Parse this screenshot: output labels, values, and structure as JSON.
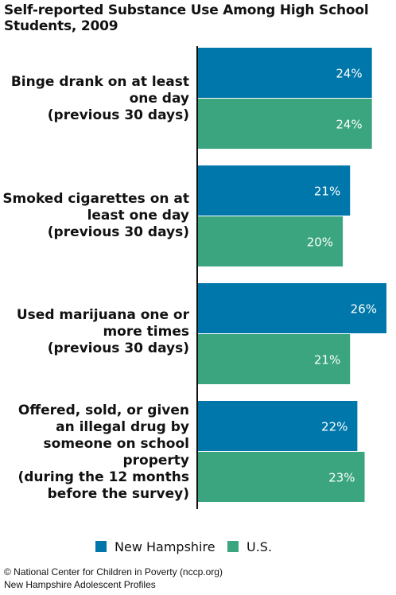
{
  "chart_data": {
    "type": "bar",
    "orientation": "horizontal",
    "title": "Self-reported Substance Use Among High School Students, 2009",
    "categories": [
      "Binge drank on at least\none day\n(previous 30 days)",
      "Smoked cigarettes on at\nleast one day\n(previous 30 days)",
      "Used marijuana one or\nmore times\n(previous 30 days)",
      "Offered, sold, or given\nan illegal drug by\nsomeone on school\nproperty\n(during the 12 months\nbefore the survey)"
    ],
    "series": [
      {
        "name": "New Hampshire",
        "values": [
          24,
          21,
          26,
          22
        ],
        "labels": [
          "24%",
          "21%",
          "26%",
          "22%"
        ],
        "color": "#0077aa"
      },
      {
        "name": "U.S.",
        "values": [
          24,
          20,
          21,
          23
        ],
        "labels": [
          "24%",
          "20%",
          "21%",
          "23%"
        ],
        "color": "#3aa57e"
      }
    ],
    "value_unit": "%",
    "xlim": [
      0,
      26
    ],
    "legend_position": "bottom"
  },
  "source": {
    "line1": "© National Center for Children in Poverty (nccp.org)",
    "line2": "New Hampshire Adolescent Profiles"
  }
}
